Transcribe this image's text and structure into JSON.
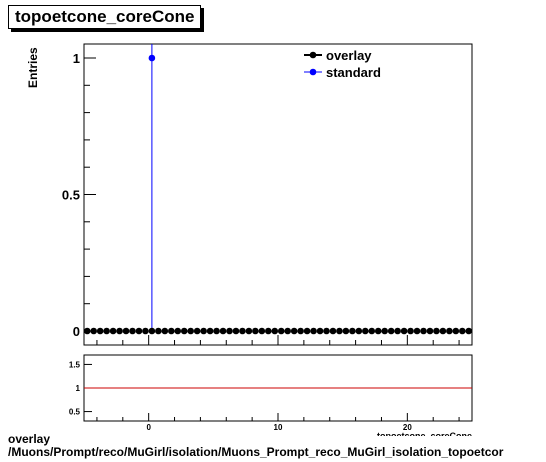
{
  "title": "topoetcone_coreCone",
  "footer": {
    "line1": "overlay",
    "line2": "/Muons/Prompt/reco/MuGirl/isolation/Muons_Prompt_reco_MuGirl_isolation_topoetcor"
  },
  "colors": {
    "overlay": "#000000",
    "standard": "#0000ff",
    "ratio_line": "#cc0000"
  },
  "chart_data": [
    {
      "type": "scatter",
      "title": "topoetcone_coreCone",
      "ylabel": "Entries",
      "xlabel": "topoetcone_coreCone",
      "xlim": [
        -5,
        25
      ],
      "ylim": [
        0,
        1.05
      ],
      "yticks": [
        0,
        0.5,
        1
      ],
      "ytick_labels": [
        "0",
        "0.5",
        "1"
      ],
      "legend": {
        "position": "top-right",
        "entries": [
          "overlay",
          "standard"
        ]
      },
      "series": [
        {
          "name": "overlay",
          "x": [
            -4.75,
            -4.25,
            -3.75,
            -3.25,
            -2.75,
            -2.25,
            -1.75,
            -1.25,
            -0.75,
            -0.25,
            0.25,
            0.75,
            1.25,
            1.75,
            2.25,
            2.75,
            3.25,
            3.75,
            4.25,
            4.75,
            5.25,
            5.75,
            6.25,
            6.75,
            7.25,
            7.75,
            8.25,
            8.75,
            9.25,
            9.75,
            10.25,
            10.75,
            11.25,
            11.75,
            12.25,
            12.75,
            13.25,
            13.75,
            14.25,
            14.75,
            15.25,
            15.75,
            16.25,
            16.75,
            17.25,
            17.75,
            18.25,
            18.75,
            19.25,
            19.75,
            20.25,
            20.75,
            21.25,
            21.75,
            22.25,
            22.75,
            23.25,
            23.75,
            24.25,
            24.75
          ],
          "y": [
            0,
            0,
            0,
            0,
            0,
            0,
            0,
            0,
            0,
            0,
            0,
            0,
            0,
            0,
            0,
            0,
            0,
            0,
            0,
            0,
            0,
            0,
            0,
            0,
            0,
            0,
            0,
            0,
            0,
            0,
            0,
            0,
            0,
            0,
            0,
            0,
            0,
            0,
            0,
            0,
            0,
            0,
            0,
            0,
            0,
            0,
            0,
            0,
            0,
            0,
            0,
            0,
            0,
            0,
            0,
            0,
            0,
            0,
            0,
            0
          ]
        },
        {
          "name": "standard",
          "x": [
            0.25
          ],
          "y": [
            1
          ]
        }
      ]
    },
    {
      "type": "line",
      "xlim": [
        -5,
        25
      ],
      "ylim": [
        0.3,
        1.7
      ],
      "yticks": [
        0.5,
        1,
        1.5
      ],
      "ytick_labels": [
        "0.5",
        "1",
        "1.5"
      ],
      "xticks": [
        0,
        10,
        20
      ],
      "xtick_labels": [
        "0",
        "10",
        "20"
      ],
      "series": [
        {
          "name": "",
          "x": [
            -5,
            25
          ],
          "y": [
            1,
            1
          ]
        }
      ]
    }
  ]
}
